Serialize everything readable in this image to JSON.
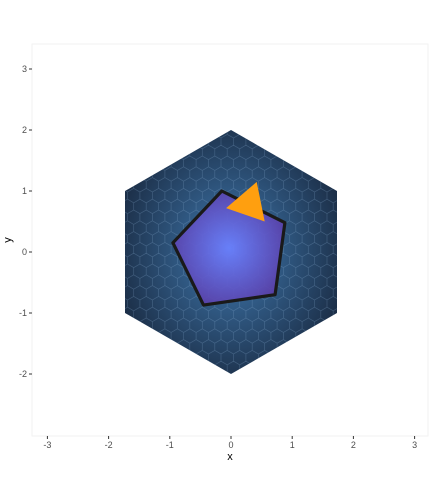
{
  "chart_data": {
    "type": "scatter",
    "title": "",
    "xlabel": "x",
    "ylabel": "y",
    "xlim": [
      -3.1,
      3.1
    ],
    "ylim": [
      -2.9,
      3.2
    ],
    "x_ticks": [
      -3,
      -2,
      -1,
      0,
      1,
      2,
      3
    ],
    "y_ticks": [
      -2,
      -1,
      0,
      1,
      2,
      3
    ],
    "grid": false,
    "hexagon": {
      "vertices": [
        [
          0,
          2
        ],
        [
          1.732,
          1
        ],
        [
          1.732,
          -1
        ],
        [
          0,
          -2
        ],
        [
          -1.732,
          -1
        ],
        [
          -1.732,
          1
        ]
      ],
      "fill_edge": "#1c2f48",
      "fill_center": "#3f79b0",
      "cell_outline": "#8fb3d6"
    },
    "pentagon": {
      "vertices": [
        [
          -0.15,
          1.0
        ],
        [
          0.88,
          0.48
        ],
        [
          0.72,
          -0.7
        ],
        [
          -0.45,
          -0.87
        ],
        [
          -0.95,
          0.15
        ]
      ],
      "fill_center": "#6b80ff",
      "fill_edge": "#5a3fa8",
      "stroke": "#1a1a1a"
    },
    "triangle": {
      "vertices": [
        [
          -0.08,
          0.72
        ],
        [
          0.42,
          1.15
        ],
        [
          0.55,
          0.5
        ]
      ],
      "fill": "#ff9f0f"
    }
  }
}
